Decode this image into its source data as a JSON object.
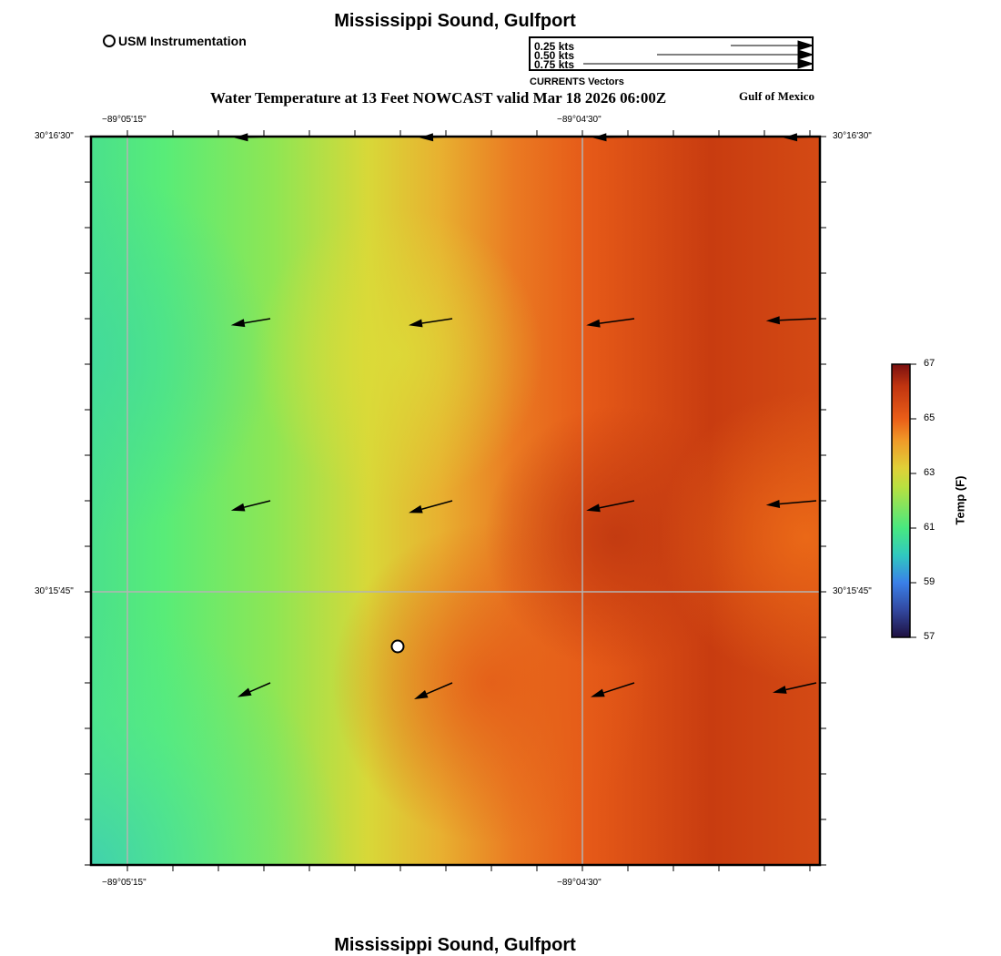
{
  "header": {
    "title": "Mississippi Sound, Gulfport",
    "subtitle": "Water Temperature at 13 Feet NOWCAST valid Mar 18 2026 06:00Z",
    "region": "Gulf of Mexico"
  },
  "legend": {
    "station_label": "USM Instrumentation",
    "vector_caption": "CURRENTS Vectors",
    "vector_scale": [
      {
        "label": "0.25 kts",
        "value_kts": 0.25
      },
      {
        "label": "0.50 kts",
        "value_kts": 0.5
      },
      {
        "label": "0.75 kts",
        "value_kts": 0.75
      }
    ]
  },
  "map": {
    "lon_ticks": [
      "−89°05'15\"",
      "−89°04'30\""
    ],
    "lat_ticks": [
      "30°16'30\"",
      "30°15'45\""
    ],
    "station": {
      "name": "USM Instrumentation"
    },
    "current_vectors_kts": [
      [
        {
          "u": -0.33,
          "v": -0.01
        },
        {
          "u": -0.3,
          "v": -0.01
        },
        {
          "u": -0.38,
          "v": -0.01
        },
        {
          "u": -0.3,
          "v": -0.01
        }
      ],
      [
        {
          "u": -0.36,
          "v": -0.06
        },
        {
          "u": -0.4,
          "v": -0.06
        },
        {
          "u": -0.44,
          "v": -0.06
        },
        {
          "u": -0.46,
          "v": -0.02
        }
      ],
      [
        {
          "u": -0.36,
          "v": -0.09
        },
        {
          "u": -0.4,
          "v": -0.11
        },
        {
          "u": -0.44,
          "v": -0.09
        },
        {
          "u": -0.46,
          "v": -0.04
        }
      ],
      [
        {
          "u": -0.3,
          "v": -0.13
        },
        {
          "u": -0.35,
          "v": -0.15
        },
        {
          "u": -0.4,
          "v": -0.13
        },
        {
          "u": -0.4,
          "v": -0.09
        }
      ]
    ]
  },
  "colorbar": {
    "title": "Temp (F)",
    "min": 57,
    "max": 67,
    "tick_labels": [
      "67",
      "65",
      "63",
      "61",
      "59",
      "57"
    ]
  },
  "footer": {
    "title": "Mississippi Sound, Gulfport"
  },
  "colors": {
    "cool": "#4ae08c",
    "mid": "#d8d838",
    "warm": "#e85a18",
    "hot": "#c43a10"
  }
}
